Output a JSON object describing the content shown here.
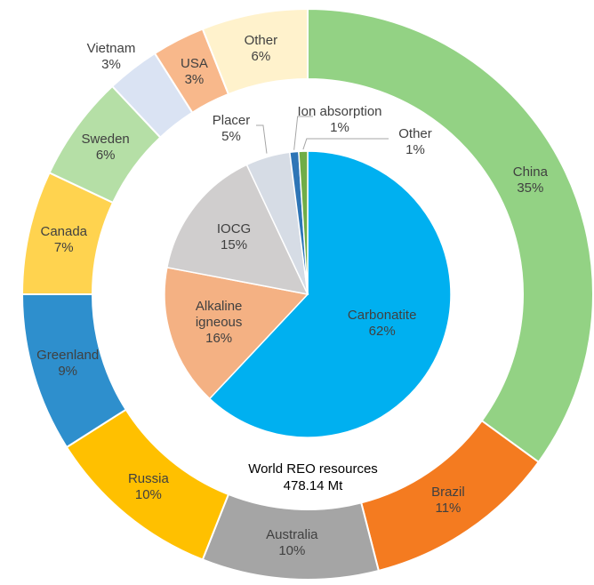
{
  "chart_data": [
    {
      "type": "donut",
      "categories": [
        "China",
        "Brazil",
        "Australia",
        "Russia",
        "Greenland",
        "Canada",
        "Sweden",
        "Vietnam",
        "USA",
        "Other"
      ],
      "values": [
        35,
        11,
        10,
        10,
        9,
        7,
        6,
        3,
        3,
        6
      ],
      "value_labels": [
        "35%",
        "11%",
        "10%",
        "10%",
        "9%",
        "7%",
        "6%",
        "3%",
        "3%",
        "6%"
      ],
      "colors": [
        "#93d284",
        "#f47b20",
        "#a5a5a5",
        "#ffc000",
        "#2e8fcd",
        "#ffd34f",
        "#b5dfa6",
        "#dae3f3",
        "#f8b88b",
        "#fff2cc"
      ]
    },
    {
      "type": "pie",
      "categories": [
        "Carbonatite",
        "Alkaline igneous",
        "IOCG",
        "Placer",
        "Ion absorption",
        "Other"
      ],
      "values": [
        62,
        16,
        15,
        5,
        1,
        1
      ],
      "value_labels": [
        "62%",
        "16%",
        "15%",
        "5%",
        "1%",
        "1%"
      ],
      "colors": [
        "#00b0f0",
        "#f4b183",
        "#d0cece",
        "#d6dce5",
        "#2e75b6",
        "#70ad47"
      ],
      "annotations": [
        "World REO resources",
        "478.14 Mt"
      ]
    }
  ]
}
